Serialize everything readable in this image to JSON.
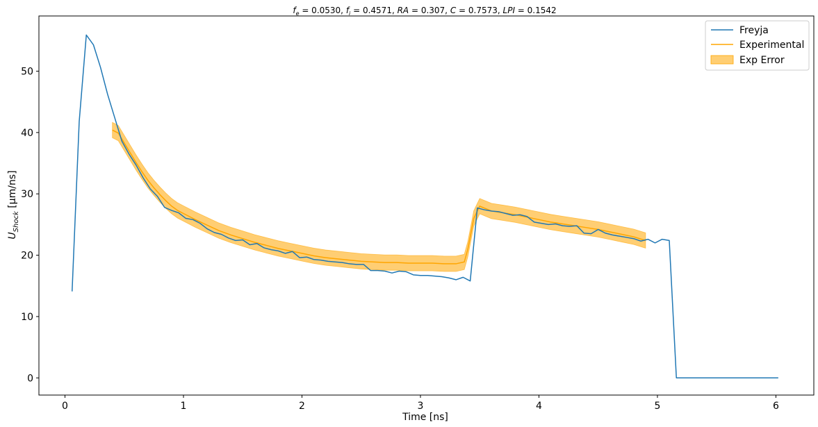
{
  "chart_data": {
    "type": "line",
    "title": "f_e = 0.0530, f_i = 0.4571, RA = 0.307, C = 0.7573, LPI = 0.1542",
    "title_parts": {
      "fe_sym": "f",
      "fe_sub": "e",
      "fe_val": " = 0.0530, ",
      "fi_sym": "f",
      "fi_sub": "i",
      "fi_val": " = 0.4571, ",
      "ra_sym": "RA",
      "ra_val": " = 0.307, ",
      "c_sym": "C",
      "c_val": " = 0.7573, ",
      "lpi_sym": "LPI",
      "lpi_val": " = 0.1542"
    },
    "xlabel": "Time [ns]",
    "ylabel_main": "U",
    "ylabel_sub": "Shock",
    "ylabel_unit": " [μm/ns]",
    "xlim": [
      -0.22,
      6.32
    ],
    "ylim": [
      -2.8,
      59.0
    ],
    "x_ticks": [
      0,
      1,
      2,
      3,
      4,
      5,
      6
    ],
    "y_ticks": [
      0,
      10,
      20,
      30,
      40,
      50
    ],
    "grid": false,
    "legend_position": "top-right",
    "colors": {
      "freyja": "#1f77b4",
      "experimental": "#ffa500",
      "exp_error": "#ffa500"
    },
    "legend": [
      "Freyja",
      "Experimental",
      "Exp Error"
    ],
    "series": [
      {
        "name": "Freyja",
        "x": [
          0.06,
          0.12,
          0.18,
          0.24,
          0.3,
          0.36,
          0.42,
          0.48,
          0.54,
          0.6,
          0.66,
          0.72,
          0.78,
          0.84,
          0.9,
          0.96,
          1.02,
          1.08,
          1.14,
          1.2,
          1.26,
          1.32,
          1.38,
          1.44,
          1.5,
          1.56,
          1.62,
          1.68,
          1.74,
          1.8,
          1.86,
          1.92,
          1.98,
          2.04,
          2.1,
          2.16,
          2.22,
          2.28,
          2.34,
          2.4,
          2.46,
          2.52,
          2.58,
          2.64,
          2.7,
          2.76,
          2.82,
          2.88,
          2.94,
          3.0,
          3.06,
          3.12,
          3.18,
          3.24,
          3.3,
          3.36,
          3.42,
          3.48,
          3.54,
          3.6,
          3.66,
          3.72,
          3.78,
          3.84,
          3.9,
          3.96,
          4.02,
          4.08,
          4.14,
          4.2,
          4.26,
          4.32,
          4.38,
          4.44,
          4.5,
          4.56,
          4.62,
          4.68,
          4.74,
          4.8,
          4.86,
          4.92,
          4.98,
          5.04,
          5.1,
          5.16,
          5.4,
          5.7,
          6.02
        ],
        "values": [
          14.1,
          41.8,
          55.9,
          54.3,
          50.6,
          46.2,
          42.4,
          38.6,
          36.5,
          34.7,
          32.6,
          30.8,
          29.6,
          27.8,
          27.3,
          26.9,
          26.0,
          25.8,
          25.2,
          24.3,
          23.7,
          23.4,
          22.8,
          22.4,
          22.5,
          21.7,
          21.9,
          21.2,
          20.9,
          20.7,
          20.3,
          20.6,
          19.6,
          19.7,
          19.3,
          19.2,
          19.0,
          18.9,
          18.8,
          18.6,
          18.5,
          18.5,
          17.5,
          17.5,
          17.4,
          17.1,
          17.4,
          17.3,
          16.8,
          16.7,
          16.7,
          16.6,
          16.5,
          16.3,
          16.0,
          16.4,
          15.8,
          27.7,
          27.4,
          27.2,
          27.1,
          26.8,
          26.5,
          26.6,
          26.3,
          25.4,
          25.2,
          25.0,
          25.1,
          24.8,
          24.7,
          24.8,
          23.6,
          23.5,
          24.2,
          23.6,
          23.3,
          23.1,
          22.9,
          22.7,
          22.3,
          22.6,
          22.0,
          22.6,
          22.4,
          0.0,
          0.0,
          0.0,
          0.0
        ]
      },
      {
        "name": "Experimental",
        "x": [
          0.4,
          0.45,
          0.5,
          0.55,
          0.6,
          0.65,
          0.7,
          0.75,
          0.8,
          0.85,
          0.9,
          0.95,
          1.0,
          1.1,
          1.2,
          1.3,
          1.4,
          1.5,
          1.6,
          1.7,
          1.8,
          1.9,
          2.0,
          2.1,
          2.2,
          2.3,
          2.4,
          2.5,
          2.6,
          2.7,
          2.8,
          2.9,
          3.0,
          3.1,
          3.2,
          3.3,
          3.37,
          3.4,
          3.45,
          3.5,
          3.55,
          3.6,
          3.7,
          3.8,
          3.9,
          4.0,
          4.1,
          4.2,
          4.3,
          4.4,
          4.5,
          4.6,
          4.7,
          4.8,
          4.9
        ],
        "values": [
          40.4,
          39.9,
          38.3,
          36.7,
          35.1,
          33.6,
          32.2,
          31.0,
          29.9,
          28.9,
          28.0,
          27.3,
          26.8,
          25.8,
          24.9,
          24.0,
          23.3,
          22.7,
          22.1,
          21.6,
          21.1,
          20.7,
          20.3,
          19.9,
          19.6,
          19.4,
          19.2,
          19.0,
          18.9,
          18.8,
          18.8,
          18.7,
          18.7,
          18.7,
          18.6,
          18.6,
          18.9,
          21.0,
          26.0,
          28.0,
          27.6,
          27.2,
          26.9,
          26.6,
          26.2,
          25.8,
          25.4,
          25.1,
          24.8,
          24.5,
          24.2,
          23.8,
          23.4,
          23.0,
          22.4
        ],
        "error": 1.25
      }
    ]
  }
}
